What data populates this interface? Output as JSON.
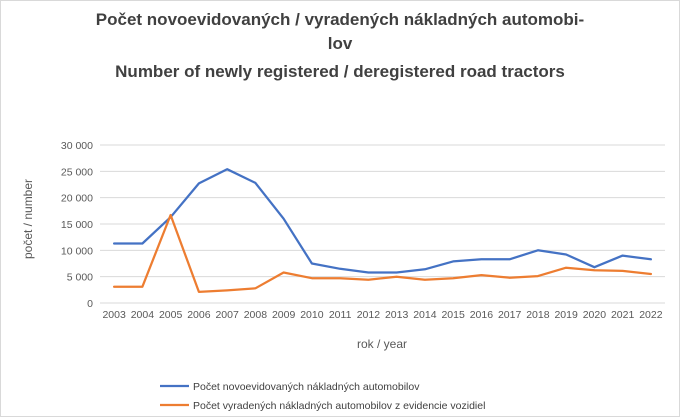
{
  "chart_data": {
    "type": "line",
    "title_lines": [
      "Počet novoevidovaných / vyradených nákladných automobi-",
      "lov",
      "Number of newly registered / deregistered road tractors"
    ],
    "xlabel": "rok / year",
    "ylabel": "počet / number",
    "ylim": [
      0,
      30000
    ],
    "yticks": [
      "0",
      "5 000",
      "10 000",
      "15 000",
      "20 000",
      "25 000",
      "30 000"
    ],
    "ytick_values": [
      0,
      5000,
      10000,
      15000,
      20000,
      25000,
      30000
    ],
    "categories": [
      "2003",
      "2004",
      "2005",
      "2006",
      "2007",
      "2008",
      "2009",
      "2010",
      "2011",
      "2012",
      "2013",
      "2014",
      "2015",
      "2016",
      "2017",
      "2018",
      "2019",
      "2020",
      "2021",
      "2022"
    ],
    "grid": true,
    "legend_position": "bottom",
    "series": [
      {
        "name": "Počet novoevidovaných nákladných automobilov",
        "color": "#4472c4",
        "values": [
          11300,
          11300,
          16300,
          22700,
          25400,
          22800,
          16000,
          7500,
          6500,
          5800,
          5800,
          6400,
          7900,
          8300,
          8300,
          10000,
          9200,
          6800,
          9000,
          8300
        ]
      },
      {
        "name": "Počet vyradených nákladných automobilov z evidencie vozidiel",
        "color": "#ed7d31",
        "values": [
          3100,
          3100,
          16700,
          2100,
          2400,
          2800,
          5800,
          4700,
          4700,
          4400,
          5000,
          4400,
          4700,
          5300,
          4800,
          5100,
          6700,
          6200,
          6100,
          5500
        ]
      }
    ]
  }
}
